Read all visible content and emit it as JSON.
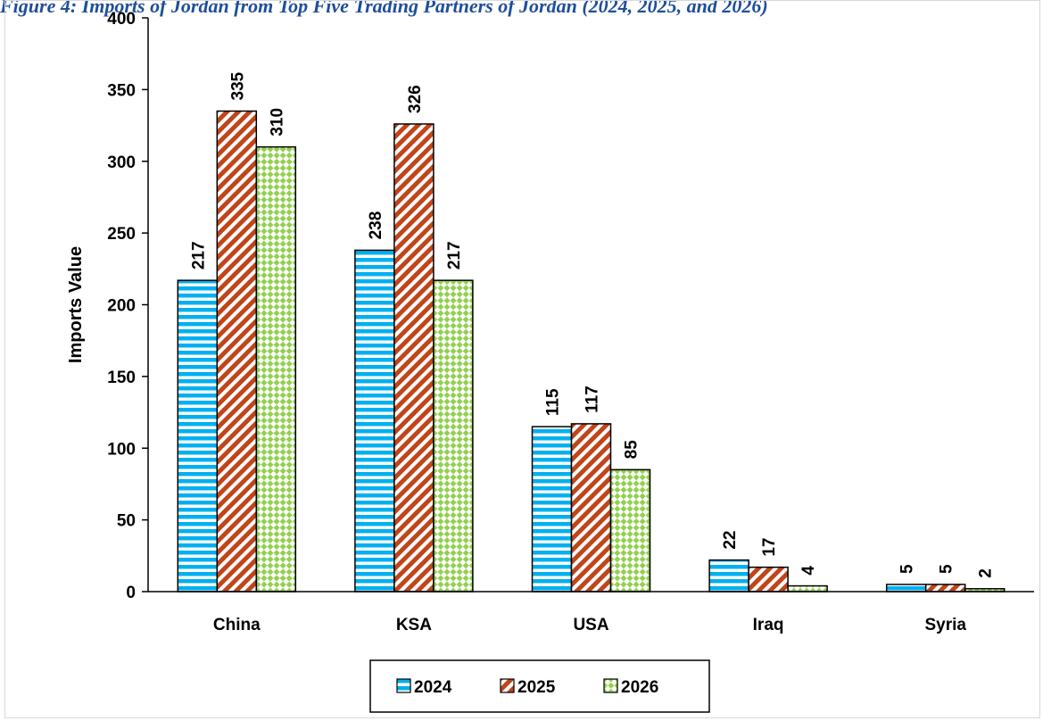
{
  "title": "Figure 4: Imports of Jordan from Top Five Trading Partners of Jordan (2024, 2025, and 2026)",
  "chart_data": {
    "type": "bar",
    "title": "Figure 4: Imports of Jordan from Top Five Trading Partners of Jordan (2024, 2025, and 2026)",
    "categories": [
      "China",
      "KSA",
      "USA",
      "Iraq",
      "Syria"
    ],
    "series": [
      {
        "name": "2024",
        "values": [
          217,
          238,
          115,
          22,
          5
        ],
        "color": "#00B0F0",
        "pattern": "horizontal-stripes"
      },
      {
        "name": "2025",
        "values": [
          335,
          326,
          117,
          17,
          5
        ],
        "color": "#C0451A",
        "pattern": "diagonal-stripes"
      },
      {
        "name": "2026",
        "values": [
          310,
          217,
          85,
          4,
          2
        ],
        "color": "#92D050",
        "pattern": "diamond-checker"
      }
    ],
    "ylabel": "Imports Value",
    "xlabel": "",
    "ylim": [
      0,
      400
    ],
    "yticks": [
      0,
      50,
      100,
      150,
      200,
      250,
      300,
      350,
      400
    ],
    "grid": false,
    "legend_position": "bottom"
  }
}
